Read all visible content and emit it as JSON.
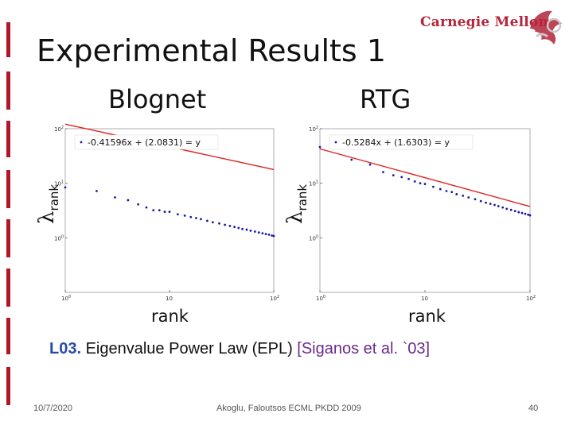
{
  "slide": {
    "title": "Experimental Results 1",
    "logo_text": "Carnegie Mellon",
    "logo_mark_icon": "cmu-scs-dragon-icon",
    "accent_color": "#b0182a",
    "caption_label": "L03.",
    "caption_text": " Eigenvalue Power Law (EPL) ",
    "caption_cite": "[Siganos et al. `03]",
    "footer_date": "10/7/2020",
    "footer_author": "Akoglu, Faloutsos ECML PKDD 2009",
    "footer_page": "40"
  },
  "chart_data": [
    {
      "type": "scatter",
      "title": "Blognet",
      "ylabel": "λ",
      "ylabel_sub": "rank",
      "xlabel": "rank",
      "xscale": "log",
      "yscale": "log",
      "xlim": [
        1,
        100
      ],
      "ylim": [
        0.1,
        100
      ],
      "xticks": [
        {
          "base": "10",
          "exp": "0"
        },
        {
          "base": "10",
          "exp": ""
        },
        {
          "base": "10",
          "exp": "2"
        }
      ],
      "yticks": [
        {
          "base": "10",
          "exp": "2"
        },
        {
          "base": "10",
          "exp": "1"
        },
        {
          "base": "10",
          "exp": "0"
        }
      ],
      "legend": "-0.41596x + (2.0831) = y",
      "legend_position": "top",
      "fit": {
        "slope": -0.41596,
        "intercept": 2.0831
      },
      "series": [
        {
          "color": "#1a1aa0",
          "x": [
            1,
            2,
            3,
            4,
            5,
            6,
            7,
            8,
            9,
            10,
            12,
            14,
            16,
            18,
            20,
            23,
            26,
            30,
            34,
            38,
            42,
            46,
            50,
            55,
            60,
            66,
            72,
            78,
            84,
            90,
            96,
            100
          ],
          "y": [
            8.4,
            7.2,
            5.5,
            4.9,
            4.1,
            3.6,
            3.2,
            3.2,
            3.0,
            3.0,
            2.7,
            2.55,
            2.4,
            2.3,
            2.2,
            2.05,
            1.93,
            1.83,
            1.73,
            1.65,
            1.58,
            1.52,
            1.45,
            1.41,
            1.35,
            1.3,
            1.25,
            1.21,
            1.17,
            1.14,
            1.1,
            1.08
          ]
        }
      ]
    },
    {
      "type": "scatter",
      "title": "RTG",
      "ylabel": "λ",
      "ylabel_sub": "rank",
      "xlabel": "rank",
      "xscale": "log",
      "yscale": "log",
      "xlim": [
        1,
        100
      ],
      "ylim": [
        0.1,
        100
      ],
      "xticks": [
        {
          "base": "10",
          "exp": "0"
        },
        {
          "base": "10",
          "exp": ""
        },
        {
          "base": "10",
          "exp": "2"
        }
      ],
      "yticks": [
        {
          "base": "10",
          "exp": "2"
        },
        {
          "base": "10",
          "exp": "1"
        },
        {
          "base": "10",
          "exp": "0"
        }
      ],
      "legend": "-0.5284x + (1.6303) = y",
      "legend_position": "top",
      "fit": {
        "slope": -0.5284,
        "intercept": 1.6303
      },
      "series": [
        {
          "color": "#1a1aa0",
          "x": [
            1,
            2,
            3,
            4,
            5,
            6,
            7,
            8,
            9,
            10,
            12,
            14,
            16,
            18,
            20,
            23,
            26,
            30,
            34,
            38,
            42,
            46,
            50,
            55,
            60,
            66,
            72,
            78,
            84,
            90,
            96,
            100
          ],
          "y": [
            46,
            27,
            22,
            16,
            14,
            13,
            12,
            10.8,
            10,
            9.7,
            8.6,
            7.8,
            7.2,
            6.9,
            6.3,
            5.9,
            5.5,
            5.1,
            4.7,
            4.4,
            4.2,
            4.0,
            3.8,
            3.6,
            3.4,
            3.25,
            3.1,
            2.95,
            2.85,
            2.75,
            2.65,
            2.58
          ]
        }
      ]
    }
  ]
}
